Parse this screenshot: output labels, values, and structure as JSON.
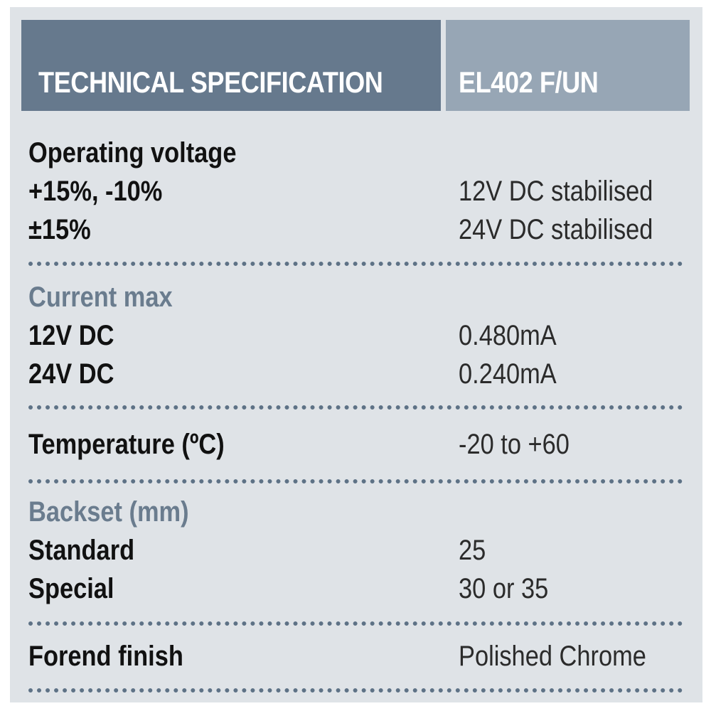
{
  "header": {
    "title": "TECHNICAL SPECIFICATION",
    "model": "EL402 F/UN"
  },
  "sections": {
    "voltage": {
      "heading": "Operating voltage",
      "rows": [
        {
          "label": "+15%, -10%",
          "value": "12V DC stabilised"
        },
        {
          "label": "±15%",
          "value": "24V DC stabilised"
        }
      ]
    },
    "current": {
      "heading": "Current max",
      "rows": [
        {
          "label": "12V DC",
          "value": "0.480mA"
        },
        {
          "label": "24V DC",
          "value": "0.240mA"
        }
      ]
    },
    "temperature": {
      "label": "Temperature (ºC)",
      "value": "-20 to +60"
    },
    "backset": {
      "heading": "Backset (mm)",
      "rows": [
        {
          "label": "Standard",
          "value": "25"
        },
        {
          "label": "Special",
          "value": "30 or 35"
        }
      ]
    },
    "forend": {
      "label": "Forend finish",
      "value": "Polished Chrome"
    }
  },
  "colors": {
    "panel": "#dfe3e7",
    "header_left": "#66798d",
    "header_right": "#97a6b5",
    "muted_heading": "#6a7c8e"
  }
}
